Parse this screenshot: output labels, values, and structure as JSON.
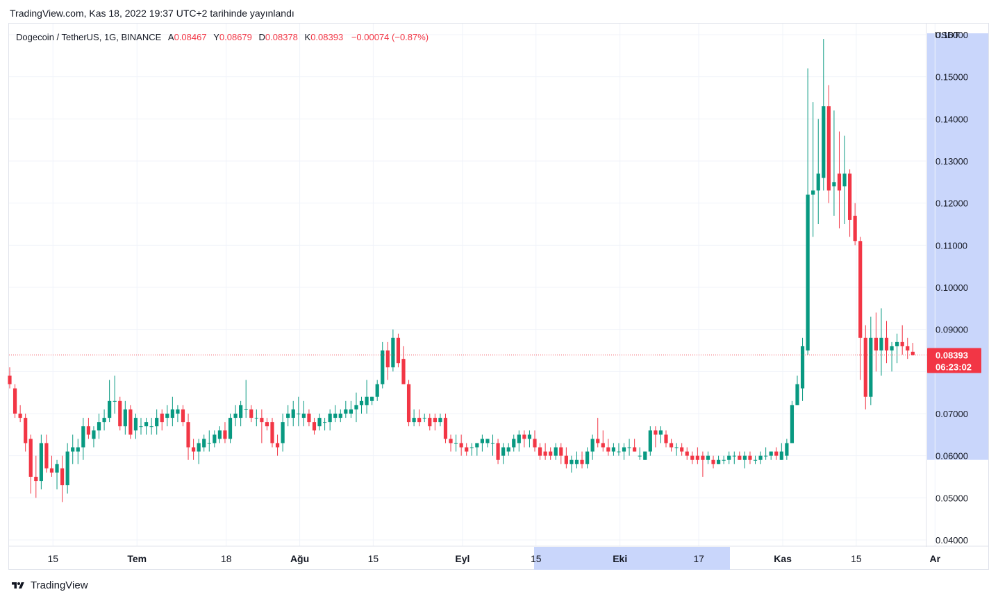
{
  "header": {
    "published": "TradingView.com, Kas 18, 2022 19:37 UTC+2 tarihinde yayınlandı"
  },
  "legend": {
    "symbol": "Dogecoin / TetherUS, 1G, BINANCE",
    "open_label": "A",
    "open": "0.08467",
    "high_label": "Y",
    "high": "0.08679",
    "low_label": "D",
    "low": "0.08378",
    "close_label": "K",
    "close": "0.08393",
    "change": "−0.00074 (−0.87%)"
  },
  "price_axis": {
    "unit": "USDT"
  },
  "last_price": {
    "value": "0.08393",
    "countdown": "06:23:02"
  },
  "footer": {
    "brand": "TradingView"
  },
  "colors": {
    "up": "#089981",
    "down": "#f23645",
    "highlight": "#c9d6fb",
    "grid": "#f0f3fa"
  },
  "chart_data": {
    "type": "candlestick",
    "symbol": "Dogecoin / TetherUS",
    "interval": "1G",
    "exchange": "BINANCE",
    "ylim": [
      0.035,
      0.168
    ],
    "y_ticks": [
      "0.04000",
      "0.05000",
      "0.06000",
      "0.07000",
      "0.09000",
      "0.10000",
      "0.11000",
      "0.12000",
      "0.13000",
      "0.14000",
      "0.15000",
      "0.16000"
    ],
    "x_ticks": [
      {
        "label": "15",
        "index": 4,
        "bold": false
      },
      {
        "label": "Tem",
        "index": 20,
        "bold": true
      },
      {
        "label": "18",
        "index": 37,
        "bold": false
      },
      {
        "label": "Ağu",
        "index": 51,
        "bold": true
      },
      {
        "label": "15",
        "index": 65,
        "bold": false
      },
      {
        "label": "Eyl",
        "index": 82,
        "bold": true
      },
      {
        "label": "15",
        "index": 96,
        "bold": false
      },
      {
        "label": "Eki",
        "index": 112,
        "bold": true
      },
      {
        "label": "17",
        "index": 127,
        "bold": false
      },
      {
        "label": "Kas",
        "index": 143,
        "bold": true
      },
      {
        "label": "15",
        "index": 157,
        "bold": false
      },
      {
        "label": "Ar",
        "index": 172,
        "bold": true
      }
    ],
    "candles": [
      [
        0.079,
        0.081,
        0.076,
        0.077
      ],
      [
        0.076,
        0.077,
        0.069,
        0.07
      ],
      [
        0.07,
        0.072,
        0.068,
        0.069
      ],
      [
        0.069,
        0.07,
        0.061,
        0.063
      ],
      [
        0.064,
        0.065,
        0.051,
        0.055
      ],
      [
        0.055,
        0.06,
        0.05,
        0.054
      ],
      [
        0.054,
        0.065,
        0.052,
        0.063
      ],
      [
        0.063,
        0.065,
        0.056,
        0.057
      ],
      [
        0.057,
        0.06,
        0.055,
        0.056
      ],
      [
        0.056,
        0.059,
        0.052,
        0.058
      ],
      [
        0.057,
        0.06,
        0.049,
        0.053
      ],
      [
        0.053,
        0.063,
        0.051,
        0.061
      ],
      [
        0.061,
        0.065,
        0.058,
        0.062
      ],
      [
        0.061,
        0.064,
        0.058,
        0.062
      ],
      [
        0.062,
        0.069,
        0.059,
        0.067
      ],
      [
        0.067,
        0.069,
        0.064,
        0.065
      ],
      [
        0.064,
        0.067,
        0.062,
        0.066
      ],
      [
        0.066,
        0.07,
        0.064,
        0.068
      ],
      [
        0.068,
        0.071,
        0.066,
        0.069
      ],
      [
        0.069,
        0.078,
        0.068,
        0.073
      ],
      [
        0.073,
        0.079,
        0.07,
        0.073
      ],
      [
        0.073,
        0.074,
        0.066,
        0.067
      ],
      [
        0.067,
        0.073,
        0.065,
        0.071
      ],
      [
        0.071,
        0.072,
        0.064,
        0.065
      ],
      [
        0.066,
        0.07,
        0.064,
        0.069
      ],
      [
        0.067,
        0.069,
        0.065,
        0.067
      ],
      [
        0.067,
        0.069,
        0.065,
        0.068
      ],
      [
        0.067,
        0.069,
        0.065,
        0.067
      ],
      [
        0.067,
        0.071,
        0.065,
        0.069
      ],
      [
        0.07,
        0.071,
        0.066,
        0.068
      ],
      [
        0.069,
        0.072,
        0.067,
        0.07
      ],
      [
        0.069,
        0.074,
        0.067,
        0.071
      ],
      [
        0.07,
        0.072,
        0.068,
        0.071
      ],
      [
        0.071,
        0.072,
        0.067,
        0.068
      ],
      [
        0.068,
        0.07,
        0.059,
        0.062
      ],
      [
        0.062,
        0.064,
        0.059,
        0.061
      ],
      [
        0.061,
        0.064,
        0.058,
        0.063
      ],
      [
        0.062,
        0.065,
        0.061,
        0.064
      ],
      [
        0.063,
        0.066,
        0.061,
        0.063
      ],
      [
        0.063,
        0.066,
        0.062,
        0.065
      ],
      [
        0.064,
        0.067,
        0.063,
        0.066
      ],
      [
        0.066,
        0.068,
        0.063,
        0.064
      ],
      [
        0.064,
        0.07,
        0.063,
        0.069
      ],
      [
        0.069,
        0.072,
        0.067,
        0.07
      ],
      [
        0.069,
        0.073,
        0.067,
        0.072
      ],
      [
        0.071,
        0.078,
        0.069,
        0.071
      ],
      [
        0.071,
        0.072,
        0.068,
        0.069
      ],
      [
        0.069,
        0.071,
        0.067,
        0.069
      ],
      [
        0.069,
        0.071,
        0.063,
        0.068
      ],
      [
        0.068,
        0.069,
        0.066,
        0.067
      ],
      [
        0.068,
        0.069,
        0.062,
        0.063
      ],
      [
        0.063,
        0.065,
        0.06,
        0.062
      ],
      [
        0.063,
        0.07,
        0.061,
        0.068
      ],
      [
        0.069,
        0.072,
        0.067,
        0.07
      ],
      [
        0.069,
        0.073,
        0.067,
        0.071
      ],
      [
        0.07,
        0.074,
        0.067,
        0.07
      ],
      [
        0.069,
        0.073,
        0.067,
        0.07
      ],
      [
        0.07,
        0.071,
        0.067,
        0.068
      ],
      [
        0.068,
        0.069,
        0.065,
        0.066
      ],
      [
        0.067,
        0.07,
        0.066,
        0.069
      ],
      [
        0.068,
        0.069,
        0.066,
        0.068
      ],
      [
        0.068,
        0.071,
        0.066,
        0.07
      ],
      [
        0.069,
        0.072,
        0.068,
        0.07
      ],
      [
        0.069,
        0.071,
        0.068,
        0.07
      ],
      [
        0.07,
        0.073,
        0.069,
        0.071
      ],
      [
        0.07,
        0.073,
        0.069,
        0.071
      ],
      [
        0.071,
        0.075,
        0.068,
        0.072
      ],
      [
        0.072,
        0.074,
        0.07,
        0.073
      ],
      [
        0.072,
        0.078,
        0.07,
        0.074
      ],
      [
        0.073,
        0.074,
        0.072,
        0.074
      ],
      [
        0.074,
        0.078,
        0.073,
        0.077
      ],
      [
        0.077,
        0.087,
        0.076,
        0.085
      ],
      [
        0.085,
        0.087,
        0.078,
        0.081
      ],
      [
        0.081,
        0.09,
        0.08,
        0.088
      ],
      [
        0.088,
        0.089,
        0.081,
        0.082
      ],
      [
        0.083,
        0.086,
        0.078,
        0.077
      ],
      [
        0.077,
        0.078,
        0.067,
        0.068
      ],
      [
        0.068,
        0.071,
        0.067,
        0.069
      ],
      [
        0.069,
        0.071,
        0.067,
        0.068
      ],
      [
        0.069,
        0.07,
        0.068,
        0.069
      ],
      [
        0.069,
        0.07,
        0.066,
        0.067
      ],
      [
        0.069,
        0.07,
        0.066,
        0.068
      ],
      [
        0.068,
        0.07,
        0.067,
        0.069
      ],
      [
        0.069,
        0.07,
        0.063,
        0.064
      ],
      [
        0.064,
        0.065,
        0.061,
        0.063
      ],
      [
        0.063,
        0.065,
        0.061,
        0.063
      ],
      [
        0.063,
        0.065,
        0.06,
        0.062
      ],
      [
        0.062,
        0.063,
        0.06,
        0.061
      ],
      [
        0.062,
        0.063,
        0.06,
        0.062
      ],
      [
        0.062,
        0.063,
        0.06,
        0.063
      ],
      [
        0.063,
        0.065,
        0.061,
        0.064
      ],
      [
        0.063,
        0.064,
        0.062,
        0.064
      ],
      [
        0.063,
        0.065,
        0.06,
        0.063
      ],
      [
        0.063,
        0.064,
        0.058,
        0.059
      ],
      [
        0.06,
        0.063,
        0.058,
        0.062
      ],
      [
        0.061,
        0.063,
        0.06,
        0.062
      ],
      [
        0.062,
        0.065,
        0.061,
        0.064
      ],
      [
        0.063,
        0.066,
        0.061,
        0.065
      ],
      [
        0.065,
        0.066,
        0.062,
        0.064
      ],
      [
        0.064,
        0.066,
        0.062,
        0.065
      ],
      [
        0.064,
        0.066,
        0.061,
        0.062
      ],
      [
        0.062,
        0.063,
        0.059,
        0.06
      ],
      [
        0.061,
        0.063,
        0.059,
        0.06
      ],
      [
        0.061,
        0.062,
        0.059,
        0.06
      ],
      [
        0.06,
        0.063,
        0.059,
        0.062
      ],
      [
        0.062,
        0.063,
        0.058,
        0.06
      ],
      [
        0.06,
        0.062,
        0.057,
        0.058
      ],
      [
        0.058,
        0.06,
        0.056,
        0.059
      ],
      [
        0.058,
        0.061,
        0.057,
        0.059
      ],
      [
        0.059,
        0.061,
        0.057,
        0.058
      ],
      [
        0.058,
        0.062,
        0.057,
        0.061
      ],
      [
        0.061,
        0.065,
        0.059,
        0.064
      ],
      [
        0.064,
        0.069,
        0.062,
        0.063
      ],
      [
        0.063,
        0.066,
        0.061,
        0.062
      ],
      [
        0.062,
        0.064,
        0.06,
        0.061
      ],
      [
        0.061,
        0.063,
        0.06,
        0.062
      ],
      [
        0.061,
        0.063,
        0.06,
        0.061
      ],
      [
        0.061,
        0.063,
        0.059,
        0.062
      ],
      [
        0.062,
        0.064,
        0.06,
        0.062
      ],
      [
        0.062,
        0.064,
        0.061,
        0.061
      ],
      [
        0.06,
        0.062,
        0.059,
        0.06
      ],
      [
        0.059,
        0.061,
        0.059,
        0.061
      ],
      [
        0.061,
        0.067,
        0.06,
        0.066
      ],
      [
        0.066,
        0.067,
        0.062,
        0.065
      ],
      [
        0.065,
        0.067,
        0.063,
        0.066
      ],
      [
        0.065,
        0.066,
        0.062,
        0.063
      ],
      [
        0.063,
        0.064,
        0.061,
        0.062
      ],
      [
        0.062,
        0.063,
        0.06,
        0.062
      ],
      [
        0.062,
        0.063,
        0.06,
        0.061
      ],
      [
        0.061,
        0.062,
        0.059,
        0.06
      ],
      [
        0.06,
        0.061,
        0.058,
        0.059
      ],
      [
        0.06,
        0.062,
        0.058,
        0.059
      ],
      [
        0.06,
        0.061,
        0.055,
        0.059
      ],
      [
        0.059,
        0.061,
        0.058,
        0.06
      ],
      [
        0.059,
        0.06,
        0.057,
        0.058
      ],
      [
        0.058,
        0.06,
        0.058,
        0.059
      ],
      [
        0.059,
        0.06,
        0.058,
        0.059
      ],
      [
        0.059,
        0.061,
        0.058,
        0.06
      ],
      [
        0.06,
        0.061,
        0.058,
        0.06
      ],
      [
        0.06,
        0.061,
        0.059,
        0.059
      ],
      [
        0.059,
        0.061,
        0.057,
        0.06
      ],
      [
        0.06,
        0.061,
        0.058,
        0.059
      ],
      [
        0.059,
        0.06,
        0.058,
        0.059
      ],
      [
        0.059,
        0.061,
        0.058,
        0.06
      ],
      [
        0.06,
        0.062,
        0.059,
        0.06
      ],
      [
        0.06,
        0.061,
        0.059,
        0.061
      ],
      [
        0.061,
        0.062,
        0.059,
        0.06
      ],
      [
        0.059,
        0.063,
        0.059,
        0.061
      ],
      [
        0.06,
        0.064,
        0.059,
        0.063
      ],
      [
        0.063,
        0.073,
        0.063,
        0.072
      ],
      [
        0.072,
        0.079,
        0.072,
        0.077
      ],
      [
        0.076,
        0.088,
        0.073,
        0.086
      ],
      [
        0.085,
        0.152,
        0.084,
        0.122
      ],
      [
        0.122,
        0.144,
        0.112,
        0.123
      ],
      [
        0.123,
        0.14,
        0.115,
        0.127
      ],
      [
        0.126,
        0.159,
        0.123,
        0.143
      ],
      [
        0.143,
        0.148,
        0.12,
        0.123
      ],
      [
        0.124,
        0.142,
        0.117,
        0.125
      ],
      [
        0.127,
        0.137,
        0.114,
        0.123
      ],
      [
        0.124,
        0.136,
        0.115,
        0.127
      ],
      [
        0.127,
        0.128,
        0.112,
        0.116
      ],
      [
        0.117,
        0.12,
        0.11,
        0.111
      ],
      [
        0.111,
        0.112,
        0.078,
        0.088
      ],
      [
        0.088,
        0.091,
        0.071,
        0.074
      ],
      [
        0.074,
        0.093,
        0.072,
        0.088
      ],
      [
        0.088,
        0.094,
        0.08,
        0.085
      ],
      [
        0.085,
        0.095,
        0.079,
        0.088
      ],
      [
        0.088,
        0.092,
        0.082,
        0.085
      ],
      [
        0.085,
        0.087,
        0.08,
        0.086
      ],
      [
        0.086,
        0.089,
        0.082,
        0.087
      ],
      [
        0.087,
        0.091,
        0.084,
        0.086
      ],
      [
        0.086,
        0.088,
        0.083,
        0.085
      ],
      [
        0.0847,
        0.0868,
        0.0838,
        0.0839
      ]
    ]
  }
}
